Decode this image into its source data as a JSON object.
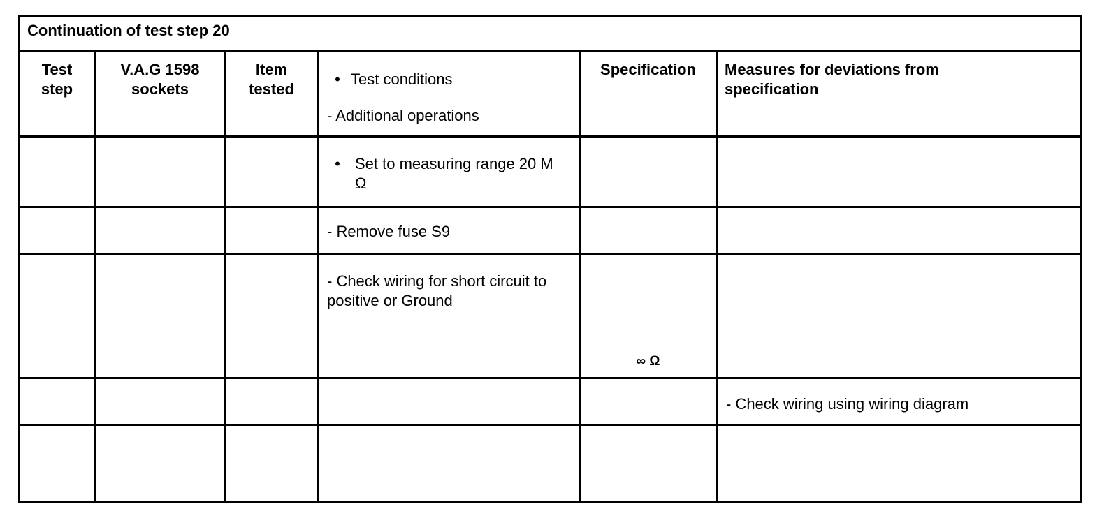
{
  "title": "Continuation of test step 20",
  "headers": {
    "test_step": "Test step",
    "sockets": "V.A.G 1598 sockets",
    "item_tested": "Item tested",
    "conditions_bullet": "Test conditions",
    "conditions_dash": "- Additional operations",
    "specification": "Specification",
    "measures": "Measures for deviations from specification"
  },
  "rows": [
    {
      "conditions": "Set to measuring range 20 M Ω",
      "conditions_style": "bullet",
      "specification": "",
      "measures": ""
    },
    {
      "conditions": "- Remove fuse S9",
      "specification": "",
      "measures": ""
    },
    {
      "conditions": "- Check wiring for short circuit to positive or Ground",
      "specification": "∞ Ω",
      "measures": ""
    },
    {
      "conditions": "",
      "specification": "",
      "measures": "- Check wiring using wiring diagram"
    },
    {
      "conditions": "",
      "specification": "",
      "measures": ""
    }
  ]
}
